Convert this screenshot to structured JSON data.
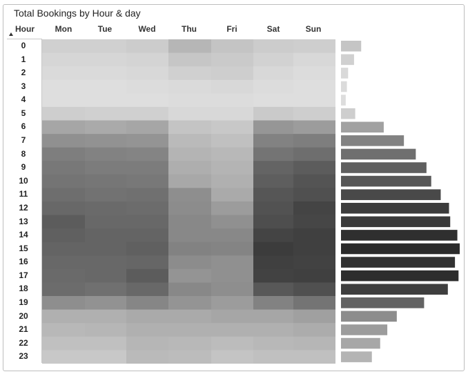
{
  "title": "Total Bookings by Hour & day",
  "chart_data": {
    "type": "heatmap",
    "title": "Total Bookings by Hour & day",
    "row_header": "Hour",
    "columns": [
      "Mon",
      "Tue",
      "Wed",
      "Thu",
      "Fri",
      "Sat",
      "Sun"
    ],
    "rows": [
      "0",
      "1",
      "2",
      "3",
      "4",
      "5",
      "6",
      "7",
      "8",
      "9",
      "10",
      "11",
      "12",
      "13",
      "14",
      "15",
      "16",
      "17",
      "18",
      "19",
      "20",
      "21",
      "22",
      "23"
    ],
    "values": [
      [
        0.14,
        0.14,
        0.16,
        0.27,
        0.2,
        0.16,
        0.15
      ],
      [
        0.11,
        0.11,
        0.12,
        0.19,
        0.17,
        0.13,
        0.1
      ],
      [
        0.09,
        0.09,
        0.1,
        0.14,
        0.15,
        0.1,
        0.08
      ],
      [
        0.07,
        0.07,
        0.08,
        0.09,
        0.1,
        0.08,
        0.07
      ],
      [
        0.07,
        0.07,
        0.07,
        0.08,
        0.08,
        0.07,
        0.07
      ],
      [
        0.15,
        0.14,
        0.14,
        0.1,
        0.1,
        0.17,
        0.15
      ],
      [
        0.35,
        0.33,
        0.35,
        0.2,
        0.18,
        0.43,
        0.4
      ],
      [
        0.46,
        0.45,
        0.44,
        0.25,
        0.22,
        0.53,
        0.55
      ],
      [
        0.55,
        0.53,
        0.52,
        0.28,
        0.26,
        0.6,
        0.63
      ],
      [
        0.58,
        0.56,
        0.56,
        0.31,
        0.28,
        0.68,
        0.72
      ],
      [
        0.6,
        0.59,
        0.58,
        0.34,
        0.3,
        0.71,
        0.76
      ],
      [
        0.63,
        0.61,
        0.62,
        0.47,
        0.33,
        0.75,
        0.78
      ],
      [
        0.66,
        0.65,
        0.64,
        0.48,
        0.4,
        0.77,
        0.84
      ],
      [
        0.72,
        0.66,
        0.66,
        0.5,
        0.46,
        0.79,
        0.83
      ],
      [
        0.7,
        0.68,
        0.68,
        0.5,
        0.5,
        0.84,
        0.86
      ],
      [
        0.68,
        0.68,
        0.7,
        0.53,
        0.52,
        0.88,
        0.86
      ],
      [
        0.66,
        0.66,
        0.67,
        0.48,
        0.46,
        0.86,
        0.85
      ],
      [
        0.65,
        0.66,
        0.72,
        0.44,
        0.46,
        0.85,
        0.86
      ],
      [
        0.64,
        0.62,
        0.66,
        0.5,
        0.47,
        0.74,
        0.78
      ],
      [
        0.47,
        0.45,
        0.51,
        0.44,
        0.4,
        0.53,
        0.6
      ],
      [
        0.3,
        0.3,
        0.33,
        0.33,
        0.35,
        0.35,
        0.38
      ],
      [
        0.26,
        0.27,
        0.3,
        0.3,
        0.3,
        0.3,
        0.32
      ],
      [
        0.22,
        0.22,
        0.27,
        0.26,
        0.24,
        0.26,
        0.27
      ],
      [
        0.18,
        0.18,
        0.25,
        0.24,
        0.2,
        0.22,
        0.22
      ]
    ],
    "row_totals": [
      0.17,
      0.11,
      0.06,
      0.05,
      0.04,
      0.12,
      0.36,
      0.53,
      0.63,
      0.72,
      0.76,
      0.84,
      0.91,
      0.92,
      0.98,
      1.0,
      0.96,
      0.99,
      0.9,
      0.7,
      0.47,
      0.39,
      0.33,
      0.26
    ],
    "values_scale": "relative intensity 0-1 (no numeric labels shown)",
    "grid": false,
    "legend": "none"
  }
}
